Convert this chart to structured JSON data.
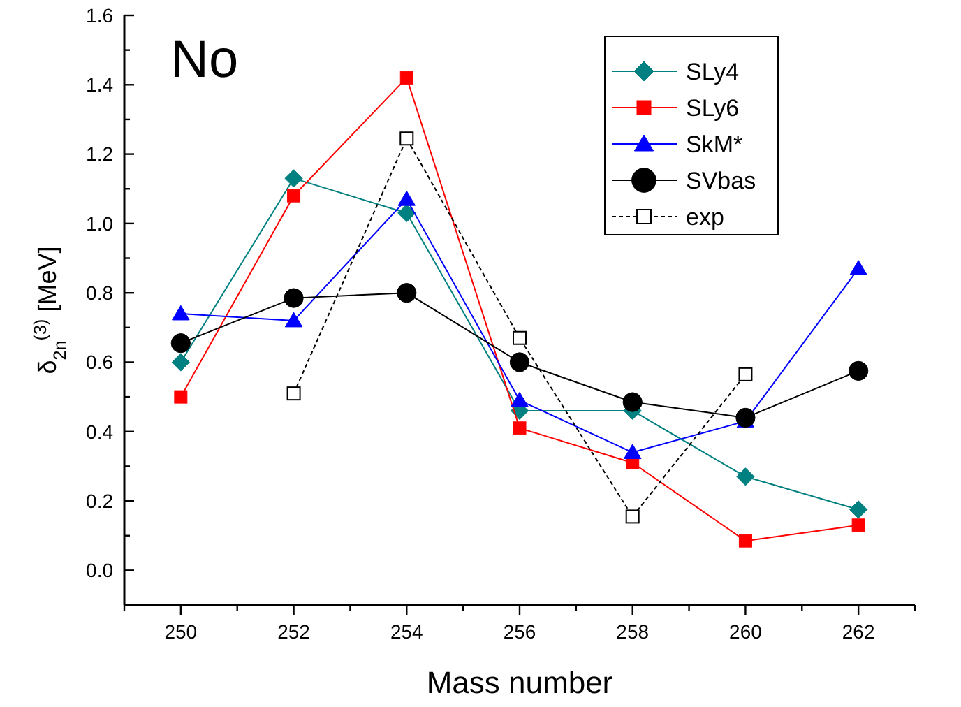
{
  "chart_data": {
    "type": "line",
    "title": "No",
    "xlabel": "Mass number",
    "ylabel": "δ$_{2n}$$^{(3)}$ [MeV]",
    "x": [
      250,
      252,
      254,
      256,
      258,
      260,
      262
    ],
    "xlim": [
      249,
      263
    ],
    "xticks": [
      {
        "value": 249,
        "label": null
      },
      250,
      {
        "value": 251,
        "label": null
      },
      252,
      {
        "value": 253,
        "label": null
      },
      254,
      {
        "value": 255,
        "label": null
      },
      256,
      {
        "value": 257,
        "label": null
      },
      258,
      {
        "value": 259,
        "label": null
      },
      260,
      {
        "value": 261,
        "label": null
      },
      262,
      {
        "value": 263,
        "label": null
      }
    ],
    "ylim": [
      -0.1,
      1.6
    ],
    "yticks": [
      {
        "value": 0,
        "label": "0.0"
      },
      {
        "value": 0.1,
        "label": null
      },
      0.2,
      {
        "value": 0.3,
        "label": null
      },
      0.4,
      {
        "value": 0.5,
        "label": null
      },
      0.6,
      {
        "value": 0.7,
        "label": null
      },
      0.8,
      {
        "value": 0.9,
        "label": null
      },
      {
        "value": 1,
        "label": "1.0"
      },
      {
        "value": 1.1,
        "label": null
      },
      1.2,
      {
        "value": 1.3,
        "label": null
      },
      1.4,
      {
        "value": 1.5,
        "label": null
      },
      1.6
    ],
    "grid": false,
    "legend": "top right",
    "series": [
      {
        "name": "SLy4",
        "color": "#008080",
        "marker": "diamond",
        "line_style": "solid",
        "values": [
          0.6,
          1.13,
          1.03,
          0.46,
          0.46,
          0.27,
          0.175
        ]
      },
      {
        "name": "SLy6",
        "color": "#ff0000",
        "marker": "square",
        "line_style": "solid",
        "values": [
          0.5,
          1.08,
          1.42,
          0.41,
          0.31,
          0.085,
          0.13
        ]
      },
      {
        "name": "SkM*",
        "color": "#0000ff",
        "marker": "triangle",
        "line_style": "solid",
        "values": [
          0.74,
          0.72,
          1.07,
          0.49,
          0.34,
          0.43,
          0.87
        ]
      },
      {
        "name": "SVbas",
        "color": "#000000",
        "marker": "circle",
        "line_style": "solid",
        "values": [
          0.655,
          0.785,
          0.8,
          0.6,
          0.485,
          0.44,
          0.575
        ]
      },
      {
        "name": "exp",
        "color": "#000000",
        "marker": "square",
        "line_style": "dashed",
        "values": [
          null,
          0.51,
          1.245,
          0.67,
          0.155,
          0.565,
          null
        ]
      }
    ]
  }
}
